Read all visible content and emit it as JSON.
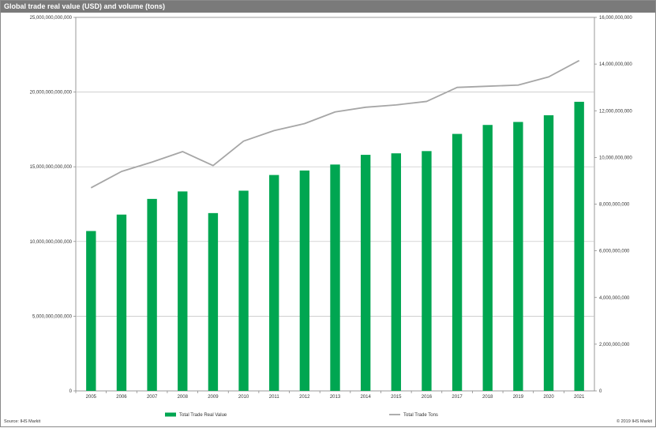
{
  "title": "Global trade real value (USD) and volume (tons)",
  "source": "Source: IHS Markit",
  "copyright": "© 2019 IHS Markit",
  "colors": {
    "bar": "#00a651",
    "line": "#a6a6a6",
    "grid": "#bfbfbf",
    "axis": "#808080"
  },
  "chart_data": {
    "type": "bar",
    "categories": [
      "2005",
      "2006",
      "2007",
      "2008",
      "2009",
      "2010",
      "2011",
      "2012",
      "2013",
      "2014",
      "2015",
      "2016",
      "2017",
      "2018",
      "2019",
      "2020",
      "2021"
    ],
    "series": [
      {
        "name": "Total Trade Real Value",
        "type": "bar",
        "axis": "left",
        "values": [
          10700000000000,
          11800000000000,
          12850000000000,
          13350000000000,
          11900000000000,
          13400000000000,
          14450000000000,
          14750000000000,
          15150000000000,
          15800000000000,
          15900000000000,
          16050000000000,
          17200000000000,
          17800000000000,
          18000000000000,
          18450000000000,
          19350000000000
        ]
      },
      {
        "name": "Total Trade Tons",
        "type": "line",
        "axis": "right",
        "values": [
          8700000000,
          9400000000,
          9800000000,
          10250000000,
          9650000000,
          10700000000,
          11150000000,
          11450000000,
          11950000000,
          12150000000,
          12250000000,
          12400000000,
          13000000000,
          13050000000,
          13100000000,
          13450000000,
          14150000000
        ]
      }
    ],
    "ylim_left": [
      0,
      25000000000000
    ],
    "ylim_right": [
      0,
      16000000000
    ],
    "yticks_left": [
      "0",
      "5,000,000,000,000",
      "10,000,000,000,000",
      "15,000,000,000,000",
      "20,000,000,000,000",
      "25,000,000,000,000"
    ],
    "yticks_right": [
      "0",
      "2,000,000,000",
      "4,000,000,000",
      "6,000,000,000",
      "8,000,000,000",
      "10,000,000,000",
      "12,000,000,000",
      "14,000,000,000",
      "16,000,000,000"
    ],
    "grid": true,
    "legend_position": "bottom"
  }
}
